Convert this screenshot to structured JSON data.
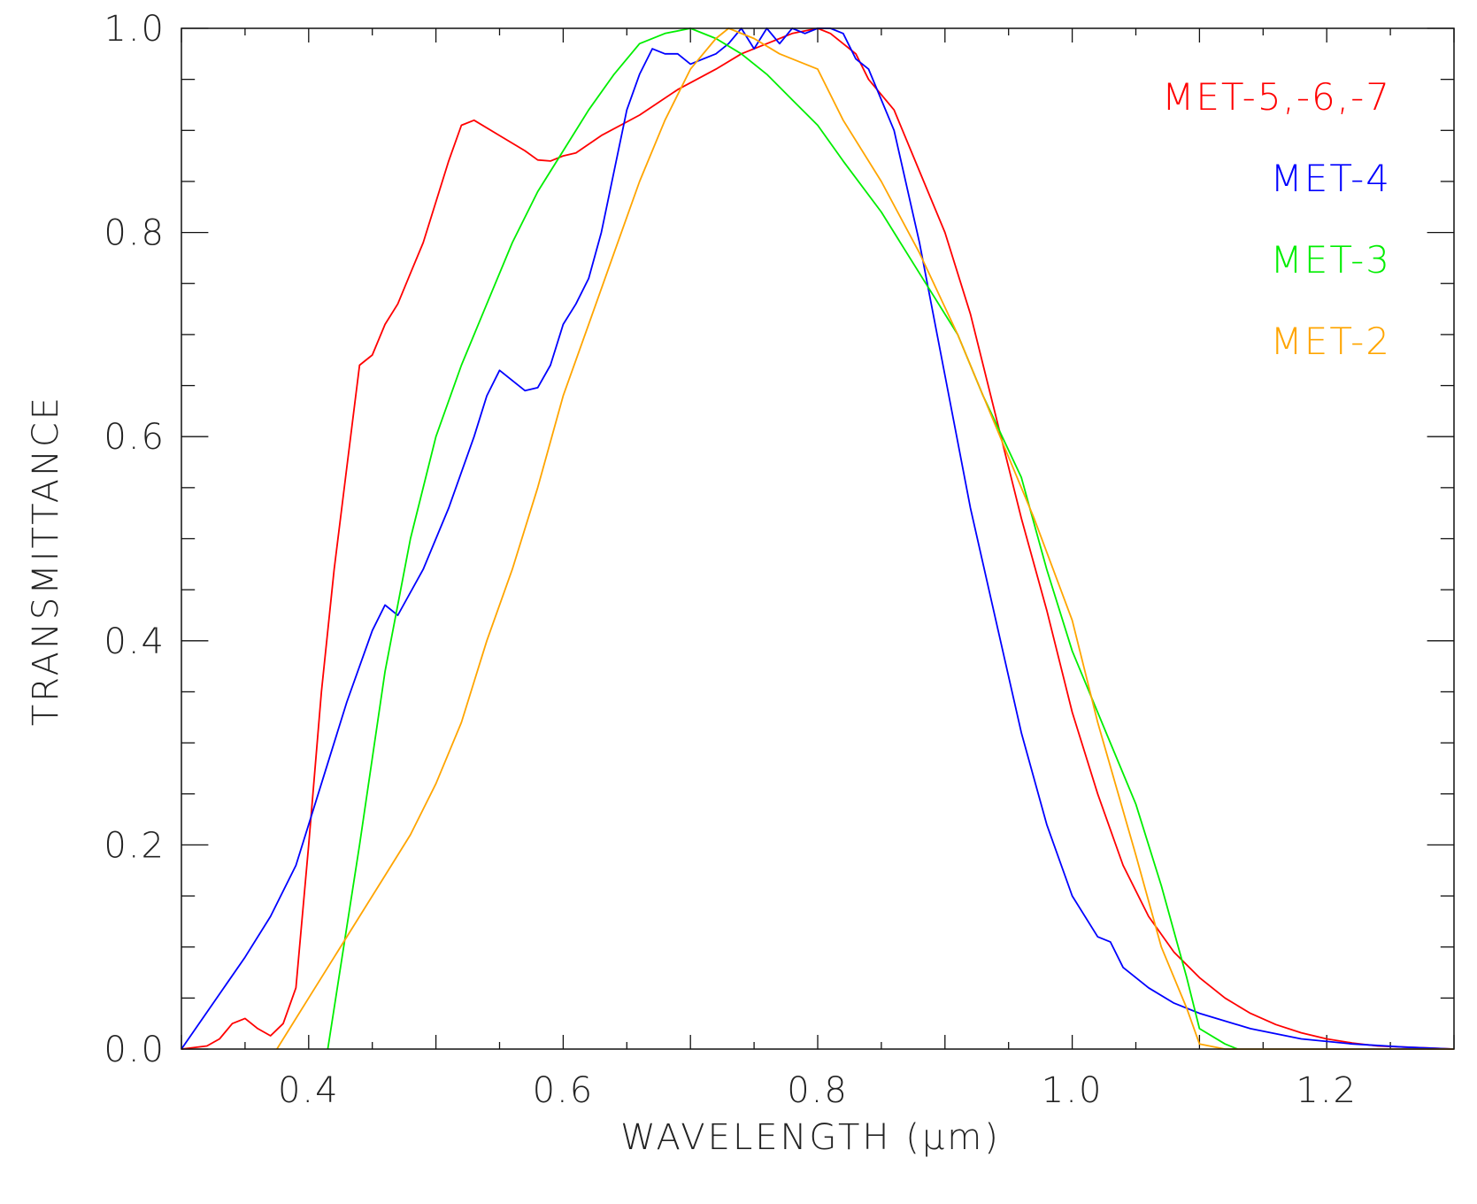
{
  "chart_data": {
    "type": "line",
    "title": "",
    "xlabel": "WAVELENGTH (μm)",
    "ylabel": "TRANSMITTANCE",
    "xlim": [
      0.3,
      1.3
    ],
    "ylim": [
      0.0,
      1.0
    ],
    "grid": false,
    "legend_position": "top-right",
    "x_ticks": [
      {
        "value": 0.4,
        "label": "0.4"
      },
      {
        "value": 0.6,
        "label": "0.6"
      },
      {
        "value": 0.8,
        "label": "0.8"
      },
      {
        "value": 1.0,
        "label": "1.0"
      },
      {
        "value": 1.2,
        "label": "1.2"
      }
    ],
    "y_ticks": [
      {
        "value": 0.0,
        "label": "0.0"
      },
      {
        "value": 0.2,
        "label": "0.2"
      },
      {
        "value": 0.4,
        "label": "0.4"
      },
      {
        "value": 0.6,
        "label": "0.6"
      },
      {
        "value": 0.8,
        "label": "0.8"
      },
      {
        "value": 1.0,
        "label": "1.0"
      }
    ],
    "x_minor_step": 0.05,
    "y_minor_step": 0.05,
    "series": [
      {
        "name": "MET-5,-6,-7",
        "color": "#ff0000",
        "points": [
          [
            0.3,
            0.0
          ],
          [
            0.32,
            0.003
          ],
          [
            0.33,
            0.01
          ],
          [
            0.34,
            0.025
          ],
          [
            0.35,
            0.03
          ],
          [
            0.36,
            0.02
          ],
          [
            0.37,
            0.013
          ],
          [
            0.38,
            0.025
          ],
          [
            0.39,
            0.06
          ],
          [
            0.4,
            0.2
          ],
          [
            0.41,
            0.35
          ],
          [
            0.42,
            0.47
          ],
          [
            0.43,
            0.57
          ],
          [
            0.44,
            0.67
          ],
          [
            0.45,
            0.68
          ],
          [
            0.46,
            0.71
          ],
          [
            0.47,
            0.73
          ],
          [
            0.48,
            0.76
          ],
          [
            0.49,
            0.79
          ],
          [
            0.5,
            0.83
          ],
          [
            0.51,
            0.87
          ],
          [
            0.52,
            0.905
          ],
          [
            0.53,
            0.91
          ],
          [
            0.55,
            0.895
          ],
          [
            0.57,
            0.88
          ],
          [
            0.58,
            0.871
          ],
          [
            0.59,
            0.87
          ],
          [
            0.6,
            0.875
          ],
          [
            0.61,
            0.878
          ],
          [
            0.63,
            0.895
          ],
          [
            0.66,
            0.915
          ],
          [
            0.69,
            0.94
          ],
          [
            0.72,
            0.96
          ],
          [
            0.74,
            0.975
          ],
          [
            0.76,
            0.985
          ],
          [
            0.78,
            0.995
          ],
          [
            0.8,
            1.0
          ],
          [
            0.81,
            0.995
          ],
          [
            0.83,
            0.975
          ],
          [
            0.84,
            0.95
          ],
          [
            0.86,
            0.92
          ],
          [
            0.88,
            0.86
          ],
          [
            0.9,
            0.8
          ],
          [
            0.92,
            0.72
          ],
          [
            0.94,
            0.62
          ],
          [
            0.96,
            0.52
          ],
          [
            0.98,
            0.43
          ],
          [
            1.0,
            0.33
          ],
          [
            1.02,
            0.25
          ],
          [
            1.04,
            0.18
          ],
          [
            1.06,
            0.13
          ],
          [
            1.08,
            0.095
          ],
          [
            1.1,
            0.07
          ],
          [
            1.12,
            0.05
          ],
          [
            1.14,
            0.035
          ],
          [
            1.16,
            0.024
          ],
          [
            1.18,
            0.016
          ],
          [
            1.2,
            0.01
          ],
          [
            1.22,
            0.006
          ],
          [
            1.24,
            0.003
          ],
          [
            1.26,
            0.002
          ],
          [
            1.28,
            0.001
          ],
          [
            1.3,
            0.0
          ]
        ]
      },
      {
        "name": "MET-4",
        "color": "#0000ff",
        "points": [
          [
            0.3,
            0.0
          ],
          [
            0.35,
            0.09
          ],
          [
            0.37,
            0.13
          ],
          [
            0.39,
            0.18
          ],
          [
            0.41,
            0.26
          ],
          [
            0.43,
            0.34
          ],
          [
            0.45,
            0.41
          ],
          [
            0.46,
            0.435
          ],
          [
            0.47,
            0.425
          ],
          [
            0.49,
            0.47
          ],
          [
            0.51,
            0.53
          ],
          [
            0.53,
            0.6
          ],
          [
            0.54,
            0.64
          ],
          [
            0.55,
            0.665
          ],
          [
            0.56,
            0.655
          ],
          [
            0.57,
            0.645
          ],
          [
            0.58,
            0.648
          ],
          [
            0.59,
            0.67
          ],
          [
            0.6,
            0.71
          ],
          [
            0.61,
            0.73
          ],
          [
            0.62,
            0.755
          ],
          [
            0.63,
            0.8
          ],
          [
            0.64,
            0.86
          ],
          [
            0.65,
            0.92
          ],
          [
            0.66,
            0.955
          ],
          [
            0.67,
            0.98
          ],
          [
            0.68,
            0.975
          ],
          [
            0.69,
            0.975
          ],
          [
            0.7,
            0.965
          ],
          [
            0.71,
            0.97
          ],
          [
            0.72,
            0.975
          ],
          [
            0.73,
            0.985
          ],
          [
            0.74,
            1.0
          ],
          [
            0.75,
            0.98
          ],
          [
            0.76,
            1.0
          ],
          [
            0.77,
            0.985
          ],
          [
            0.78,
            1.0
          ],
          [
            0.79,
            0.995
          ],
          [
            0.8,
            1.0
          ],
          [
            0.81,
            1.0
          ],
          [
            0.82,
            0.995
          ],
          [
            0.83,
            0.97
          ],
          [
            0.84,
            0.96
          ],
          [
            0.86,
            0.9
          ],
          [
            0.88,
            0.79
          ],
          [
            0.9,
            0.66
          ],
          [
            0.92,
            0.53
          ],
          [
            0.94,
            0.42
          ],
          [
            0.96,
            0.31
          ],
          [
            0.98,
            0.22
          ],
          [
            1.0,
            0.15
          ],
          [
            1.02,
            0.11
          ],
          [
            1.03,
            0.105
          ],
          [
            1.04,
            0.08
          ],
          [
            1.06,
            0.06
          ],
          [
            1.08,
            0.045
          ],
          [
            1.1,
            0.035
          ],
          [
            1.14,
            0.02
          ],
          [
            1.18,
            0.01
          ],
          [
            1.22,
            0.005
          ],
          [
            1.26,
            0.002
          ],
          [
            1.3,
            0.0
          ]
        ]
      },
      {
        "name": "MET-3",
        "color": "#00ee00",
        "points": [
          [
            0.415,
            0.0
          ],
          [
            0.44,
            0.2
          ],
          [
            0.46,
            0.37
          ],
          [
            0.48,
            0.5
          ],
          [
            0.5,
            0.6
          ],
          [
            0.52,
            0.67
          ],
          [
            0.54,
            0.73
          ],
          [
            0.56,
            0.79
          ],
          [
            0.58,
            0.84
          ],
          [
            0.6,
            0.88
          ],
          [
            0.62,
            0.92
          ],
          [
            0.64,
            0.955
          ],
          [
            0.66,
            0.985
          ],
          [
            0.68,
            0.995
          ],
          [
            0.7,
            1.0
          ],
          [
            0.72,
            0.99
          ],
          [
            0.74,
            0.975
          ],
          [
            0.76,
            0.955
          ],
          [
            0.78,
            0.93
          ],
          [
            0.8,
            0.905
          ],
          [
            0.82,
            0.87
          ],
          [
            0.85,
            0.82
          ],
          [
            0.88,
            0.76
          ],
          [
            0.91,
            0.7
          ],
          [
            0.93,
            0.64
          ],
          [
            0.96,
            0.56
          ],
          [
            0.98,
            0.47
          ],
          [
            1.0,
            0.39
          ],
          [
            1.03,
            0.3
          ],
          [
            1.05,
            0.24
          ],
          [
            1.07,
            0.16
          ],
          [
            1.09,
            0.07
          ],
          [
            1.1,
            0.02
          ],
          [
            1.12,
            0.005
          ],
          [
            1.13,
            0.0
          ]
        ]
      },
      {
        "name": "MET-2",
        "color": "#ffa500",
        "points": [
          [
            0.375,
            0.0
          ],
          [
            0.4,
            0.05
          ],
          [
            0.42,
            0.09
          ],
          [
            0.44,
            0.13
          ],
          [
            0.46,
            0.17
          ],
          [
            0.48,
            0.21
          ],
          [
            0.5,
            0.26
          ],
          [
            0.52,
            0.32
          ],
          [
            0.54,
            0.4
          ],
          [
            0.56,
            0.47
          ],
          [
            0.58,
            0.55
          ],
          [
            0.6,
            0.64
          ],
          [
            0.62,
            0.71
          ],
          [
            0.64,
            0.78
          ],
          [
            0.66,
            0.85
          ],
          [
            0.68,
            0.91
          ],
          [
            0.7,
            0.96
          ],
          [
            0.72,
            0.99
          ],
          [
            0.73,
            1.0
          ],
          [
            0.75,
            0.99
          ],
          [
            0.77,
            0.975
          ],
          [
            0.8,
            0.96
          ],
          [
            0.82,
            0.91
          ],
          [
            0.85,
            0.85
          ],
          [
            0.88,
            0.78
          ],
          [
            0.91,
            0.7
          ],
          [
            0.94,
            0.61
          ],
          [
            0.97,
            0.52
          ],
          [
            1.0,
            0.42
          ],
          [
            1.02,
            0.32
          ],
          [
            1.05,
            0.19
          ],
          [
            1.07,
            0.1
          ],
          [
            1.09,
            0.04
          ],
          [
            1.1,
            0.005
          ],
          [
            1.12,
            0.0
          ],
          [
            1.3,
            0.0
          ]
        ]
      }
    ]
  }
}
